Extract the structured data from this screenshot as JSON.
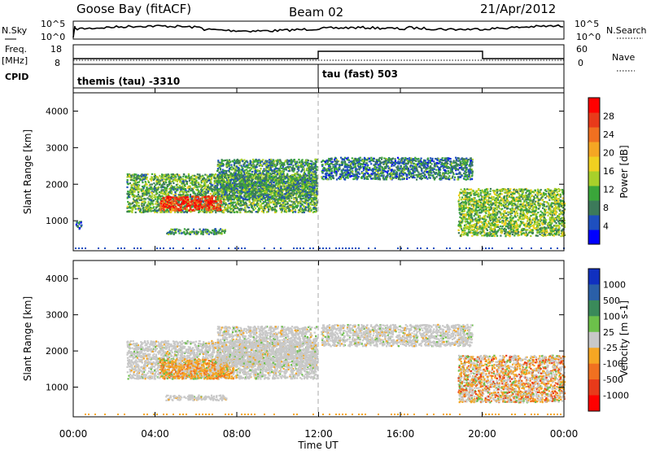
{
  "header": {
    "station": "Goose Bay (fitACF)",
    "beam": "Beam 02",
    "date": "21/Apr/2012"
  },
  "summary_panels": {
    "nsky_label": "N.Sky",
    "nsky_ticks": [
      "10^5",
      "10^0"
    ],
    "nsearch_label": "N.Search",
    "nsearch_ticks": [
      "10^5",
      "10^0"
    ],
    "freq_label": "Freq.",
    "freq_unit": "[MHz]",
    "freq_ticks": [
      "18",
      "8"
    ],
    "nave_label": "Nave",
    "nave_ticks": [
      "60",
      "0"
    ],
    "cpid_label": "CPID",
    "cpid_segments": [
      {
        "label": "themis (tau) -3310",
        "start_hour": 0,
        "end_hour": 12
      },
      {
        "label": "tau (fast) 503",
        "start_hour": 12,
        "end_hour": 24
      }
    ]
  },
  "chart_data": [
    {
      "type": "heatmap",
      "panel": "power",
      "ylabel": "Slant Range [km]",
      "xlabel": "Time UT",
      "xlim": [
        0,
        24
      ],
      "ylim": [
        180,
        4500
      ],
      "y_ticks": [
        1000,
        2000,
        3000,
        4000
      ],
      "x_ticks": [
        "00:00",
        "04:00",
        "08:00",
        "12:00",
        "16:00",
        "20:00",
        "00:00"
      ],
      "colorbar": {
        "label": "Power [dB]",
        "ticks": [
          "4",
          "8",
          "12",
          "16",
          "20",
          "24",
          "28"
        ],
        "colors": [
          "#0000ff",
          "#1e4fbf",
          "#3c7a5a",
          "#3aa63a",
          "#a8d02a",
          "#f0d020",
          "#f5a623",
          "#f07020",
          "#e83a1a",
          "#ff0000"
        ]
      },
      "regions": [
        {
          "t0": 2.6,
          "t1": 11.9,
          "r0": 1250,
          "r1": 2300,
          "level": 0.35
        },
        {
          "t0": 4.2,
          "t1": 7.2,
          "r0": 1300,
          "r1": 1700,
          "level": 0.85
        },
        {
          "t0": 7.0,
          "t1": 11.9,
          "r0": 1600,
          "r1": 2700,
          "level": 0.3
        },
        {
          "t0": 12.1,
          "t1": 19.5,
          "r0": 2150,
          "r1": 2750,
          "level": 0.25
        },
        {
          "t0": 18.8,
          "t1": 24.0,
          "r0": 600,
          "r1": 1900,
          "level": 0.4
        },
        {
          "t0": 4.5,
          "t1": 7.5,
          "r0": 650,
          "r1": 800,
          "level": 0.3
        },
        {
          "t0": 0.1,
          "t1": 0.4,
          "r0": 800,
          "r1": 1000,
          "level": 0.2
        }
      ]
    },
    {
      "type": "heatmap",
      "panel": "velocity",
      "ylabel": "Slant Range [km]",
      "xlabel": "Time UT",
      "xlim": [
        0,
        24
      ],
      "ylim": [
        180,
        4500
      ],
      "y_ticks": [
        1000,
        2000,
        3000,
        4000
      ],
      "x_ticks": [
        "00:00",
        "04:00",
        "08:00",
        "12:00",
        "16:00",
        "20:00",
        "00:00"
      ],
      "colorbar": {
        "label": "Velocity [m s-1]",
        "ticks": [
          "1000",
          "500",
          "100",
          "25",
          "-25",
          "-100",
          "-500",
          "-1000"
        ],
        "colors": [
          "#1030c0",
          "#2a5fa8",
          "#3a8a5a",
          "#6cc04a",
          "#c8c8c8",
          "#f5a623",
          "#f07020",
          "#e83a1a",
          "#ff0000"
        ]
      },
      "regions": [
        {
          "t0": 2.6,
          "t1": 11.9,
          "r0": 1250,
          "r1": 2300,
          "level": "gray"
        },
        {
          "t0": 4.2,
          "t1": 7.8,
          "r0": 1250,
          "r1": 1800,
          "level": "orange"
        },
        {
          "t0": 7.0,
          "t1": 11.9,
          "r0": 1600,
          "r1": 2700,
          "level": "gray"
        },
        {
          "t0": 12.1,
          "t1": 19.5,
          "r0": 2150,
          "r1": 2750,
          "level": "gray"
        },
        {
          "t0": 18.8,
          "t1": 24.0,
          "r0": 600,
          "r1": 1900,
          "level": "mixed"
        },
        {
          "t0": 4.5,
          "t1": 7.5,
          "r0": 650,
          "r1": 800,
          "level": "gray"
        }
      ]
    }
  ]
}
